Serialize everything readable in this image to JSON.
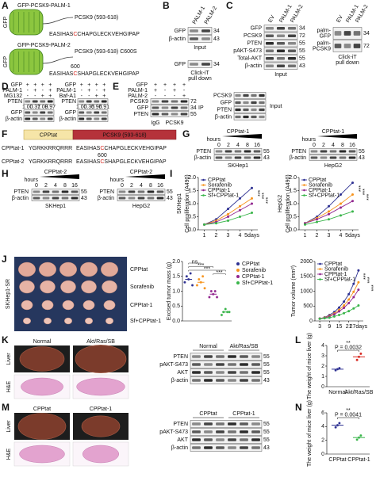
{
  "A": {
    "label": "A",
    "constructs": [
      {
        "tag": "GFP",
        "name": "GFP-PCSK9-PALM-1",
        "region": "PCSK9 (593-618)",
        "sequence": [
          "EASIHAS",
          "C",
          "CHAPGLECKVEHGIPAP"
        ]
      },
      {
        "tag": "GFP",
        "name": "GFP-PCSK9-PALM-2",
        "site": "600",
        "region": "PCSK9 (593-618) C600S",
        "sequence": [
          "EASIHAS",
          "C",
          "SHAPGLECKVEHGIPAP"
        ]
      }
    ]
  },
  "B": {
    "label": "B",
    "lanes": [
      "PALM-1",
      "PALM-2"
    ],
    "blots": [
      {
        "rows": [
          "GFP",
          "β-actin"
        ],
        "mw": [
          34,
          43
        ],
        "caption": [
          "Input"
        ]
      },
      {
        "rows": [
          "GFP"
        ],
        "mw": [
          34
        ],
        "caption": [
          "Click-iT",
          "pull down"
        ]
      }
    ]
  },
  "C": {
    "label": "C",
    "blots": [
      {
        "lanes": [
          "EV",
          "PALM-1",
          "PALM-2"
        ],
        "rows": [
          "GFP",
          "PCSK9",
          "PTEN",
          "pAKT-S473",
          "Total-AKT",
          "β-actin"
        ],
        "mw": [
          34,
          72,
          55,
          55,
          55,
          43
        ],
        "caption": [
          "Input"
        ]
      },
      {
        "lanes": [
          "EV",
          "PALM-1",
          "PALM-2"
        ],
        "rows": [
          [
            "palm-",
            "GFP"
          ],
          [
            "palm-",
            "PCSK9"
          ]
        ],
        "mw": [
          34,
          72
        ],
        "caption": [
          "Click-iT",
          "pull down"
        ]
      }
    ]
  },
  "D": {
    "label": "D",
    "blots": [
      {
        "conditions": [
          {
            "name": "GFP",
            "signs": [
              "+",
              "+",
              "+",
              "+"
            ]
          },
          {
            "name": "PALM-1",
            "signs": [
              "-",
              "+",
              "-",
              "+"
            ]
          },
          {
            "name": "MG132",
            "signs": [
              "-",
              "-",
              "+",
              "+"
            ]
          }
        ],
        "rows": [
          "PTEN",
          "GFP",
          "β-actin"
        ],
        "quant": [
          "1.00",
          "0.37",
          "1.08",
          "0.97"
        ]
      },
      {
        "conditions": [
          {
            "name": "GFP",
            "signs": [
              "+",
              "+",
              "+",
              "+"
            ]
          },
          {
            "name": "PALM-1",
            "signs": [
              "-",
              "+",
              "-",
              "+"
            ]
          },
          {
            "name": "Baf-A1",
            "signs": [
              "-",
              "-",
              "+",
              "+"
            ]
          }
        ],
        "rows": [
          "PTEN",
          "GFP",
          "β-actin"
        ],
        "quant": [
          "1.00",
          "0.35",
          "0.96",
          "0.91"
        ]
      }
    ]
  },
  "E": {
    "label": "E",
    "conditions": [
      {
        "name": "GFP",
        "signs": [
          "+",
          "+",
          "+",
          "+"
        ]
      },
      {
        "name": "PALM-1",
        "signs": [
          "+",
          "-",
          "+",
          "-"
        ]
      },
      {
        "name": "PALM-2",
        "signs": [
          "-",
          "-",
          "-",
          "+"
        ]
      }
    ],
    "blots": [
      {
        "rows": [
          "PCSK9",
          "GFP",
          "PTEN"
        ],
        "mw": [
          72,
          34,
          55
        ],
        "caption": [
          "IP"
        ],
        "groups": [
          "IgG",
          "PCSK9"
        ]
      },
      {
        "rows": [
          "PCSK9",
          "GFP",
          "PTEN",
          "β-actin"
        ],
        "caption": [
          "Input"
        ]
      }
    ]
  },
  "F": {
    "label": "F",
    "domains": [
      "CPPtat",
      "PCSK9 (593-618)"
    ],
    "peptides": [
      {
        "name": "CPPtat-1",
        "tat": "YGRKKRRQRRR",
        "sequence": [
          "EASIHAS",
          "C",
          "CHAPGLECKVEHGIPAP"
        ]
      },
      {
        "name": "CPPtat-2",
        "site": "600",
        "tat": "YGRKKRRQRRR",
        "sequence": [
          "EASIHAS",
          "C",
          "SHAPGLECKVEHGIPAP"
        ]
      }
    ]
  },
  "G": {
    "label": "G",
    "blots": [
      {
        "peptide": "CPPtat-1",
        "time_label": "hours",
        "hours": [
          "0",
          "2",
          "4",
          "8",
          "16"
        ],
        "rows": [
          "PTEN",
          "β-actin"
        ],
        "mw": [
          55,
          43
        ],
        "cell_line": "SKHep1"
      },
      {
        "peptide": "CPPtat-1",
        "time_label": "hours",
        "hours": [
          "0",
          "2",
          "4",
          "8",
          "16"
        ],
        "rows": [
          "PTEN",
          "β-actin"
        ],
        "mw": [
          55,
          43
        ],
        "cell_line": "HepG2"
      }
    ]
  },
  "H": {
    "label": "H",
    "blots": [
      {
        "peptide": "CPPtat-2",
        "time_label": "hours",
        "hours": [
          "0",
          "2",
          "4",
          "8",
          "16"
        ],
        "rows": [
          "PTEN",
          "β-actin"
        ],
        "mw": [
          55,
          43
        ],
        "cell_line": "SKHep1"
      },
      {
        "peptide": "CPPtat-2",
        "time_label": "hours",
        "hours": [
          "0",
          "2",
          "4",
          "8",
          "16"
        ],
        "rows": [
          "PTEN",
          "β-actin"
        ],
        "mw": [
          55,
          43
        ],
        "cell_line": "HepG2"
      }
    ]
  },
  "I": {
    "label": "I",
    "charts": [
      {
        "type": "line",
        "cell_line": "SKHep1",
        "ylabel": "Cell proliferation (A490)",
        "x": [
          1,
          2,
          3,
          4,
          5
        ],
        "xlim": [
          0.5,
          5.5
        ],
        "xticks": [
          1,
          2,
          3,
          4,
          {
            "value": 5,
            "label": "5days"
          }
        ],
        "ylim": [
          0,
          2
        ],
        "yticks": [
          {
            "value": 0,
            "label": "0.0"
          },
          0.5,
          {
            "value": 1,
            "label": "1.0"
          },
          1.5,
          {
            "value": 2,
            "label": "2.0"
          }
        ],
        "series": [
          {
            "name": "CPPtat",
            "color": "#2e3192",
            "values": [
              0.2,
              0.4,
              0.8,
              1.2,
              1.6
            ]
          },
          {
            "name": "Sorafenib",
            "color": "#f7941d",
            "values": [
              0.2,
              0.35,
              0.6,
              0.9,
              1.2
            ]
          },
          {
            "name": "CPPtat-1",
            "color": "#92278f",
            "values": [
              0.2,
              0.3,
              0.5,
              0.75,
              1.0
            ]
          },
          {
            "name": "Sf+CPPtat-1",
            "color": "#39b54a",
            "values": [
              0.2,
              0.25,
              0.35,
              0.5,
              0.65
            ]
          }
        ],
        "significance": [
          "***",
          "***",
          "***"
        ]
      },
      {
        "type": "line",
        "cell_line": "HepG2",
        "ylabel": "Cell proliferation (A490)",
        "x": [
          1,
          2,
          3,
          4,
          5
        ],
        "xlim": [
          0.5,
          5.5
        ],
        "xticks": [
          1,
          2,
          3,
          4,
          {
            "value": 5,
            "label": "5days"
          }
        ],
        "ylim": [
          0,
          2
        ],
        "yticks": [
          {
            "value": 0,
            "label": "0.0"
          },
          0.5,
          {
            "value": 1,
            "label": "1.0"
          },
          1.5,
          {
            "value": 2,
            "label": "2.0"
          }
        ],
        "series": [
          {
            "name": "CPPtat",
            "color": "#2e3192",
            "values": [
              0.25,
              0.5,
              0.9,
              1.35,
              1.8
            ]
          },
          {
            "name": "Sorafenib",
            "color": "#f7941d",
            "values": [
              0.25,
              0.45,
              0.7,
              1.0,
              1.35
            ]
          },
          {
            "name": "CPPtat-1",
            "color": "#92278f",
            "values": [
              0.25,
              0.4,
              0.6,
              0.85,
              1.1
            ]
          },
          {
            "name": "Sf+CPPtat-1",
            "color": "#39b54a",
            "values": [
              0.2,
              0.3,
              0.4,
              0.55,
              0.7
            ]
          }
        ],
        "significance": [
          "***",
          "***",
          "***"
        ]
      }
    ]
  },
  "J": {
    "label": "J",
    "photo": {
      "model": "SKHep1-SR",
      "groups": [
        "CPPtat",
        "Sorafenib",
        "CPPtat-1",
        "Sf+CPPtat-1"
      ]
    },
    "mass": {
      "type": "scatter",
      "ylabel": "Excised tumor mass (g)",
      "categories": [
        "CPPtat",
        "Sorafenib",
        "CPPtat-1",
        "Sf+CPPtat-1"
      ],
      "colors": [
        "#2e3192",
        "#f7941d",
        "#92278f",
        "#39b54a"
      ],
      "values": [
        1.4,
        1.3,
        0.9,
        0.3
      ],
      "points": [
        [
          1.3,
          1.5,
          1.4,
          1.6,
          1.2
        ],
        [
          1.2,
          1.4,
          1.3,
          1.5,
          1.1
        ],
        [
          0.8,
          1.0,
          0.9,
          1.0,
          0.8
        ],
        [
          0.2,
          0.3,
          0.4,
          0.3,
          0.3
        ]
      ],
      "ylim": [
        0,
        2
      ],
      "yticks": [
        {
          "value": 0,
          "label": "0.0"
        },
        0.5,
        {
          "value": 1,
          "label": "1.0"
        },
        1.5,
        {
          "value": 2,
          "label": "2.0"
        }
      ],
      "annotations": [
        "ns",
        "***",
        "***",
        "***"
      ]
    },
    "volume": {
      "type": "line",
      "ylabel": "Tumor volume (mm³)",
      "x": [
        3,
        6,
        9,
        12,
        15,
        18,
        21,
        24,
        27
      ],
      "xlim": [
        0,
        30
      ],
      "xticks": [
        3,
        9,
        15,
        21,
        {
          "value": 27,
          "label": "27days"
        }
      ],
      "ylim": [
        0,
        2000
      ],
      "yticks": [
        0,
        500,
        1000,
        1500,
        2000
      ],
      "series": [
        {
          "name": "CPPtat",
          "color": "#2e3192",
          "values": [
            80,
            120,
            200,
            300,
            450,
            650,
            900,
            1250,
            1700
          ]
        },
        {
          "name": "Sorafenib",
          "color": "#f7941d",
          "values": [
            80,
            110,
            170,
            250,
            370,
            520,
            720,
            980,
            1300
          ]
        },
        {
          "name": "CPPtat-1",
          "color": "#92278f",
          "values": [
            80,
            100,
            150,
            220,
            320,
            440,
            600,
            800,
            1050
          ]
        },
        {
          "name": "Sf+CPPtat-1",
          "color": "#39b54a",
          "values": [
            70,
            90,
            110,
            150,
            200,
            260,
            330,
            420,
            520
          ]
        }
      ],
      "significance": [
        "***",
        "***",
        "***"
      ]
    }
  },
  "K": {
    "label": "K",
    "groups": [
      "Normal",
      "Akt/Ras/SB"
    ],
    "tissues": [
      "Liver",
      "H&E"
    ],
    "blot": {
      "lanes": [
        "Normal",
        "Akt/Ras/SB"
      ],
      "rows": [
        "PTEN",
        "pAKT-S473",
        "AKT",
        "β-actin"
      ],
      "mw": [
        55,
        55,
        55,
        43
      ]
    }
  },
  "L": {
    "label": "L",
    "chart": {
      "type": "scatter",
      "ylabel": "The weight of mice liver (g)",
      "categories": [
        "Normal",
        "Akt/Ras/SB"
      ],
      "colors": [
        "#2e3192",
        "#d7261e"
      ],
      "values": [
        1.7,
        2.9
      ],
      "points": [
        [
          1.6,
          1.7,
          1.8
        ],
        [
          2.6,
          2.9,
          3.2
        ]
      ],
      "ylim": [
        0,
        4
      ],
      "yticks": [
        0,
        1,
        2,
        3,
        4
      ],
      "stars": "**",
      "p_value": "P = 0.0032"
    }
  },
  "M": {
    "label": "M",
    "groups": [
      "CPPtat",
      "CPPtat-1"
    ],
    "tissues": [
      "Liver",
      "H&E"
    ],
    "blot": {
      "lanes": [
        "CPPtat",
        "CPPtat-1"
      ],
      "rows": [
        "PTEN",
        "pAKT-S473",
        "AKT",
        "β-actin"
      ],
      "mw": [
        55,
        55,
        55,
        43
      ]
    }
  },
  "N": {
    "label": "N",
    "chart": {
      "type": "scatter",
      "ylabel": "The weight of mice liver (g)",
      "categories": [
        "CPPtat",
        "CPPtat-1"
      ],
      "colors": [
        "#2e3192",
        "#39b54a"
      ],
      "values": [
        4.2,
        2.4
      ],
      "points": [
        [
          3.9,
          4.2,
          4.5
        ],
        [
          2.1,
          2.4,
          2.7
        ]
      ],
      "ylim": [
        0,
        6
      ],
      "yticks": [
        0,
        2,
        4,
        6
      ],
      "stars": "**",
      "p_value": "P = 0.0041"
    }
  }
}
